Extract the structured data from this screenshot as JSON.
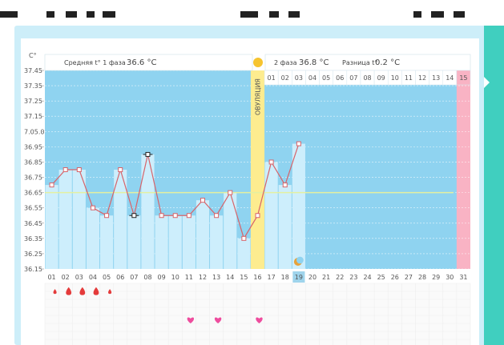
{
  "chart_data": {
    "type": "line",
    "unit_label": "C°",
    "y_ticks": [
      "37.45",
      "37.35",
      "37.25",
      "37.15",
      "7.05.0",
      "36.95",
      "36.85",
      "36.75",
      "36.65",
      "36.55",
      "36.45",
      "36.35",
      "36.25",
      "36.15"
    ],
    "ylim": [
      36.15,
      37.45
    ],
    "x_labels": [
      "01",
      "02",
      "03",
      "04",
      "05",
      "06",
      "07",
      "08",
      "09",
      "10",
      "11",
      "12",
      "13",
      "14",
      "15",
      "16",
      "17",
      "18",
      "19",
      "20",
      "21",
      "22",
      "23",
      "24",
      "25",
      "26",
      "27",
      "28",
      "29",
      "30",
      "31"
    ],
    "values": [
      36.7,
      36.8,
      36.8,
      36.55,
      36.5,
      36.8,
      36.5,
      36.9,
      36.5,
      36.5,
      36.5,
      36.6,
      36.5,
      36.65,
      36.35,
      36.5,
      36.85,
      36.7,
      36.97
    ],
    "average_line": 36.65,
    "phase1": {
      "label": "Средняя t° 1 фаза",
      "value": "36.6 °C"
    },
    "ovulation_label": "ОВУЛЯЦИЯ",
    "phase2": {
      "label": "2 фаза",
      "value": "36.8 °C",
      "diff_label": "Разница t°",
      "diff_value": "0.2 °C",
      "days": [
        "01",
        "02",
        "03",
        "04",
        "05",
        "06",
        "07",
        "08",
        "09",
        "10",
        "11",
        "12",
        "13",
        "14",
        "15"
      ]
    },
    "ovulation_day": 16,
    "highlighted_day": 19,
    "menstruation_days": [
      1,
      2,
      3,
      4,
      5
    ],
    "heart_days": [
      11,
      13,
      16
    ],
    "grid": true,
    "colors": {
      "bg": "#8fd3f0",
      "bar": "#cdeefc",
      "ovulation": "#fdec8f",
      "line": "#d7646a",
      "average": "#e4f0a0",
      "last_col": "#f9b3c4",
      "drop": "#e43b3b",
      "heart": "#ee4d9e",
      "moon": "#e7a23a"
    }
  }
}
